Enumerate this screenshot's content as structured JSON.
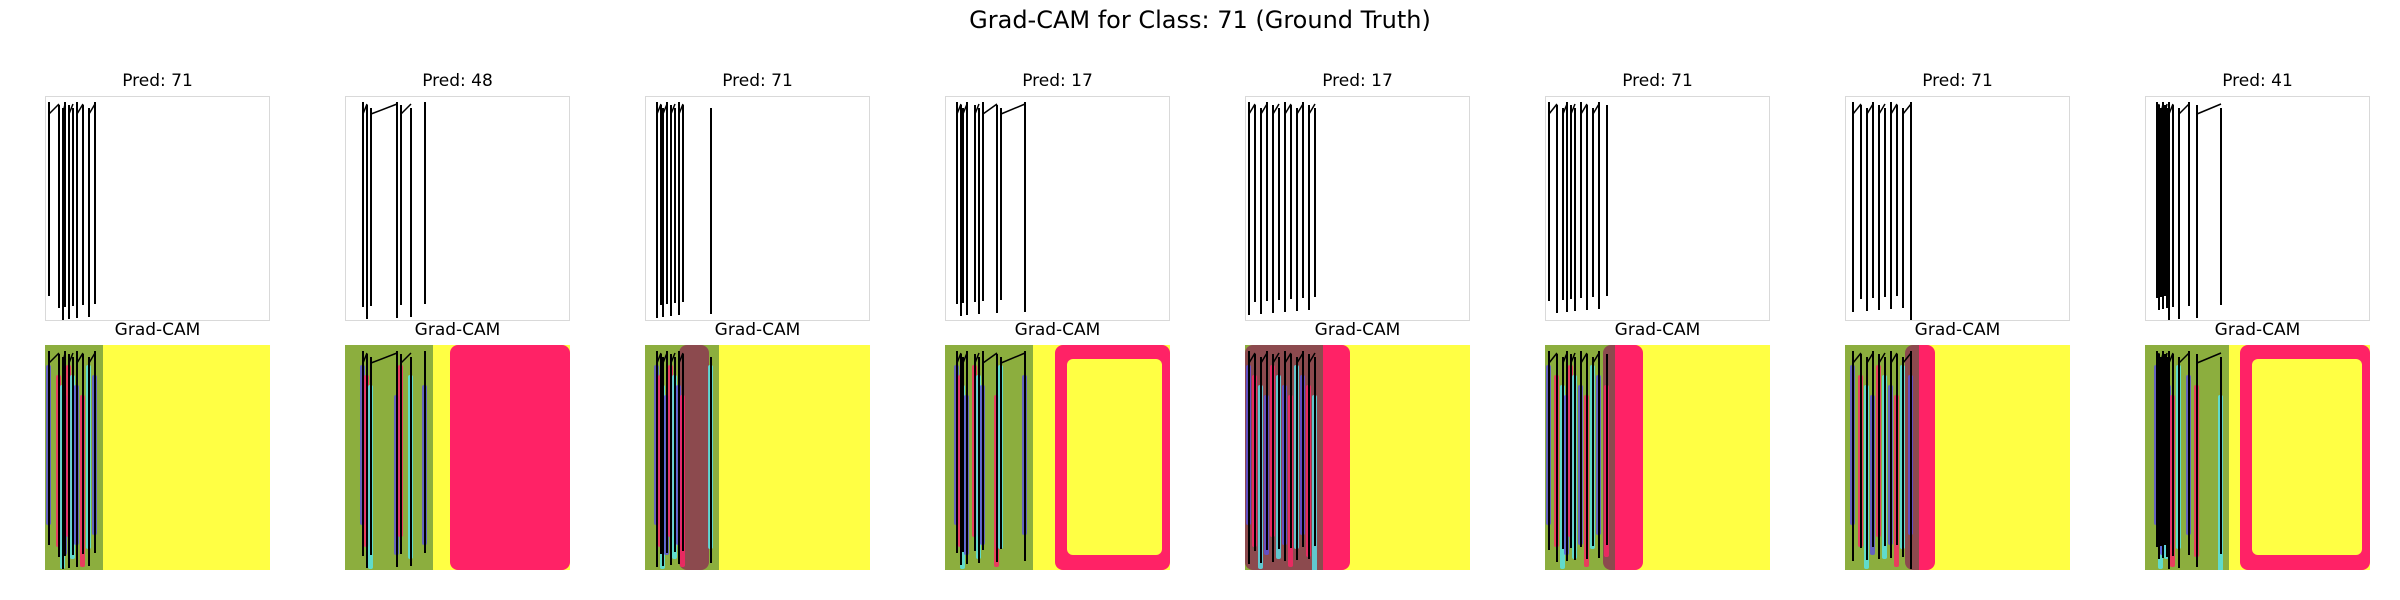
{
  "figure": {
    "suptitle": "Grad-CAM for Class: 71 (Ground Truth)"
  },
  "columns": [
    {
      "pred_title": "Pred: 71",
      "cam_title": "Grad-CAM"
    },
    {
      "pred_title": "Pred: 48",
      "cam_title": "Grad-CAM"
    },
    {
      "pred_title": "Pred: 71",
      "cam_title": "Grad-CAM"
    },
    {
      "pred_title": "Pred: 17",
      "cam_title": "Grad-CAM"
    },
    {
      "pred_title": "Pred: 17",
      "cam_title": "Grad-CAM"
    },
    {
      "pred_title": "Pred: 71",
      "cam_title": "Grad-CAM"
    },
    {
      "pred_title": "Pred: 71",
      "cam_title": "Grad-CAM"
    },
    {
      "pred_title": "Pred: 41",
      "cam_title": "Grad-CAM"
    }
  ],
  "colors": {
    "stroke": "#000000",
    "panel_border": "#d9d9d9",
    "cam_yellow": "#ffff44",
    "cam_pink": "#ff2266",
    "cam_green": "#2d6b3a",
    "cam_blue": "#5a4fe0",
    "cam_cyan": "#55e6f0"
  }
}
